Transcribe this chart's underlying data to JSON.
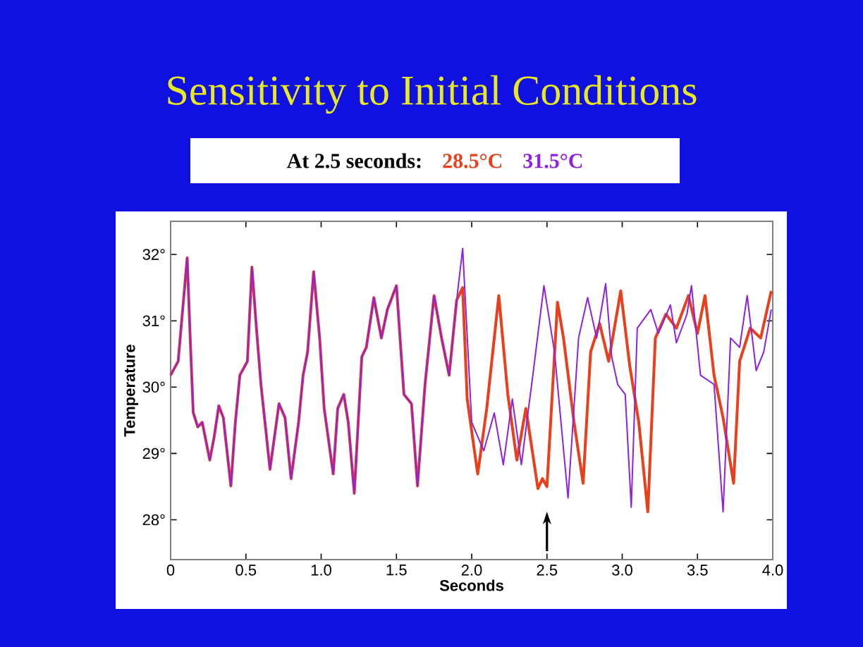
{
  "chart_data": {
    "type": "line",
    "title": "Sensitivity to Initial Conditions",
    "xlabel": "Seconds",
    "ylabel": "Temperature",
    "annotations": [
      "At 2.5 seconds:"
    ],
    "legend": "top",
    "xlim": [
      0,
      4
    ],
    "ylim": [
      27.4,
      32.5
    ],
    "xticks": [
      {
        "value": 0,
        "label": "0"
      },
      0.5,
      {
        "value": 1,
        "label": "1.0"
      },
      1.5,
      {
        "value": 2,
        "label": "2.0"
      },
      2.5,
      {
        "value": 3,
        "label": "3.0"
      },
      3.5,
      {
        "value": 4,
        "label": "4.0"
      }
    ],
    "yticks": [
      {
        "value": 28,
        "label": "28°"
      },
      {
        "value": 29,
        "label": "29°"
      },
      {
        "value": 30,
        "label": "30°"
      },
      {
        "value": 31,
        "label": "31°"
      },
      {
        "value": 32,
        "label": "32°"
      }
    ],
    "series": [
      {
        "name": "28.5°C",
        "color": "#e8401c",
        "x": [
          0.0,
          0.05,
          0.08,
          0.11,
          0.13,
          0.15,
          0.18,
          0.21,
          0.26,
          0.29,
          0.32,
          0.35,
          0.4,
          0.43,
          0.46,
          0.51,
          0.54,
          0.57,
          0.6,
          0.66,
          0.72,
          0.76,
          0.8,
          0.85,
          0.88,
          0.91,
          0.95,
          0.99,
          1.02,
          1.08,
          1.11,
          1.15,
          1.18,
          1.22,
          1.27,
          1.3,
          1.35,
          1.4,
          1.44,
          1.5,
          1.55,
          1.6,
          1.64,
          1.69,
          1.75,
          1.8,
          1.85,
          1.9,
          1.94,
          1.97,
          2.04,
          2.1,
          2.18,
          2.24,
          2.3,
          2.36,
          2.44,
          2.47,
          2.5,
          2.57,
          2.61,
          2.68,
          2.74,
          2.79,
          2.85,
          2.91,
          2.99,
          3.05,
          3.11,
          3.17,
          3.22,
          3.29,
          3.36,
          3.44,
          3.5,
          3.55,
          3.61,
          3.67,
          3.74,
          3.78,
          3.85,
          3.92,
          3.99
        ],
        "values": [
          30.18,
          30.39,
          31.17,
          31.95,
          30.74,
          29.62,
          29.4,
          29.47,
          28.9,
          29.26,
          29.72,
          29.54,
          28.51,
          29.47,
          30.18,
          30.39,
          31.81,
          30.89,
          30.04,
          28.76,
          29.75,
          29.54,
          28.62,
          29.47,
          30.18,
          30.53,
          31.74,
          30.74,
          29.68,
          28.69,
          29.68,
          29.89,
          29.47,
          28.4,
          30.46,
          30.6,
          31.35,
          30.74,
          31.17,
          31.53,
          29.89,
          29.75,
          28.51,
          30.04,
          31.38,
          30.74,
          30.18,
          31.31,
          31.5,
          29.82,
          28.69,
          29.68,
          31.38,
          29.89,
          28.9,
          29.68,
          28.47,
          28.62,
          28.5,
          31.28,
          30.74,
          29.47,
          28.55,
          30.53,
          30.96,
          30.39,
          31.45,
          30.32,
          29.47,
          28.12,
          30.74,
          31.1,
          30.89,
          31.38,
          30.81,
          31.38,
          30.18,
          29.54,
          28.55,
          30.39,
          30.89,
          30.74,
          31.45
        ]
      },
      {
        "name": "31.5°C",
        "color": "#9020e0",
        "x": [
          0.0,
          0.05,
          0.08,
          0.11,
          0.13,
          0.15,
          0.18,
          0.21,
          0.26,
          0.29,
          0.32,
          0.35,
          0.4,
          0.43,
          0.46,
          0.51,
          0.54,
          0.57,
          0.6,
          0.66,
          0.72,
          0.76,
          0.8,
          0.85,
          0.88,
          0.91,
          0.95,
          0.99,
          1.02,
          1.08,
          1.11,
          1.15,
          1.18,
          1.22,
          1.27,
          1.3,
          1.35,
          1.4,
          1.44,
          1.5,
          1.55,
          1.6,
          1.64,
          1.69,
          1.75,
          1.8,
          1.85,
          1.9,
          1.94,
          2.0,
          2.08,
          2.15,
          2.21,
          2.27,
          2.33,
          2.41,
          2.48,
          2.55,
          2.64,
          2.71,
          2.77,
          2.83,
          2.89,
          2.93,
          2.97,
          3.02,
          3.06,
          3.1,
          3.19,
          3.24,
          3.32,
          3.36,
          3.43,
          3.46,
          3.52,
          3.61,
          3.67,
          3.72,
          3.78,
          3.83,
          3.89,
          3.94,
          3.99
        ],
        "values": [
          30.18,
          30.39,
          31.17,
          31.95,
          30.74,
          29.62,
          29.4,
          29.47,
          28.9,
          29.26,
          29.72,
          29.54,
          28.51,
          29.47,
          30.18,
          30.39,
          31.81,
          30.89,
          30.04,
          28.76,
          29.75,
          29.54,
          28.62,
          29.47,
          30.18,
          30.53,
          31.74,
          30.74,
          29.68,
          28.69,
          29.68,
          29.89,
          29.47,
          28.4,
          30.46,
          30.6,
          31.35,
          30.74,
          31.17,
          31.53,
          29.89,
          29.75,
          28.51,
          30.04,
          31.38,
          30.74,
          30.18,
          31.31,
          32.09,
          29.47,
          29.04,
          29.61,
          28.83,
          29.82,
          28.83,
          30.25,
          31.53,
          30.53,
          28.33,
          30.74,
          31.35,
          30.74,
          31.56,
          30.46,
          30.04,
          29.89,
          28.19,
          30.89,
          31.17,
          30.81,
          31.24,
          30.67,
          31.1,
          31.53,
          30.18,
          30.04,
          28.12,
          30.74,
          30.6,
          31.38,
          30.25,
          30.53,
          31.17
        ]
      }
    ]
  }
}
